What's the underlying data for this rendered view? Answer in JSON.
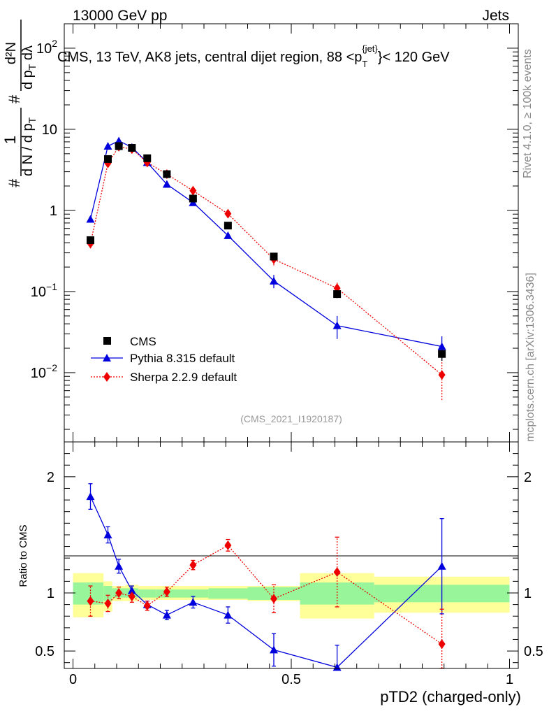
{
  "header": {
    "left": "13000 GeV pp",
    "right": "Jets"
  },
  "side_labels": {
    "rivet": "Rivet 4.1.0, ≥ 100k events",
    "mcplots": "mcplots.cern.ch [arXiv:1306.3436]"
  },
  "axis_labels": {
    "y_main_hash1": "#",
    "y_main_frac1_num": "1",
    "y_main_frac1_den": "d N / d p",
    "y_main_frac1_den_sub": "T",
    "y_main_hash2": "#",
    "y_main_frac2_num": "d²N",
    "y_main_frac2_den": "d p",
    "y_main_frac2_den_sub": "T",
    "y_main_frac2_den_tail": " dλ",
    "y_ratio": "Ratio to CMS",
    "x": "pTD2 (charged-only)"
  },
  "colors": {
    "cms": "#000000",
    "pythia": "#0000dd",
    "sherpa": "#ee0000",
    "band_inner": "#99f599",
    "band_outer": "#ffff99",
    "watermark": "#999999"
  },
  "chart_data": [
    {
      "panel": "main",
      "type": "line",
      "title": "CMS, 13 TeV, AK8 jets, central dijet region, 88 <p",
      "title_sup": "{jet}",
      "title_sub": "T",
      "title_tail": "}< 120 GeV",
      "watermark": "(CMS_2021_I1920187)",
      "xlabel": "pTD2 (charged-only)",
      "yscale": "log",
      "xlim": [
        -0.02,
        1.02
      ],
      "ylim": [
        0.0014,
        200
      ],
      "x_ticks": [
        0,
        0.5,
        1
      ],
      "y_tick_labels": [
        {
          "value": 100,
          "label": "10",
          "sup": "2"
        },
        {
          "value": 10,
          "label": "10",
          "sup": ""
        },
        {
          "value": 1,
          "label": "1",
          "sup": ""
        },
        {
          "value": 0.1,
          "label": "10",
          "sup": "−1"
        },
        {
          "value": 0.01,
          "label": "10",
          "sup": "−2"
        }
      ],
      "legend_position": "bottom-left",
      "series": [
        {
          "name": "CMS",
          "marker": "square",
          "x": [
            0.04,
            0.08,
            0.105,
            0.135,
            0.17,
            0.215,
            0.275,
            0.355,
            0.46,
            0.605,
            0.845
          ],
          "xerr": [
            0.02,
            0.02,
            0.015,
            0.015,
            0.02,
            0.025,
            0.035,
            0.045,
            0.06,
            0.085,
            0.155
          ],
          "values": [
            0.43,
            4.3,
            6.2,
            5.9,
            4.4,
            2.8,
            1.4,
            0.65,
            0.27,
            0.093,
            0.017
          ],
          "err": [
            0.03,
            0.2,
            0.25,
            0.25,
            0.2,
            0.15,
            0.08,
            0.05,
            0.025,
            0.01,
            0.003
          ]
        },
        {
          "name": "Pythia 8.315 default",
          "marker": "triangle",
          "line": "solid",
          "x": [
            0.04,
            0.08,
            0.105,
            0.135,
            0.17,
            0.215,
            0.275,
            0.355,
            0.46,
            0.605,
            0.845
          ],
          "values": [
            0.78,
            6.2,
            7.2,
            6.0,
            3.9,
            2.1,
            1.25,
            0.49,
            0.135,
            0.038,
            0.021
          ],
          "err": [
            0.04,
            0.2,
            0.25,
            0.2,
            0.15,
            0.1,
            0.07,
            0.04,
            0.025,
            0.012,
            0.007
          ]
        },
        {
          "name": "Sherpa 2.2.9 default",
          "marker": "diamond",
          "line": "dotted",
          "x": [
            0.04,
            0.08,
            0.105,
            0.135,
            0.17,
            0.215,
            0.275,
            0.355,
            0.46,
            0.605,
            0.845
          ],
          "values": [
            0.39,
            3.8,
            6.1,
            5.7,
            3.9,
            2.8,
            1.75,
            0.91,
            0.25,
            0.11,
            0.0094
          ],
          "err": [
            0.05,
            0.3,
            0.3,
            0.3,
            0.2,
            0.15,
            0.12,
            0.08,
            0.04,
            0.02,
            0.0048
          ]
        }
      ]
    },
    {
      "panel": "ratio",
      "type": "line",
      "ylabel": "Ratio to CMS",
      "xlabel": "pTD2 (charged-only)",
      "xlim": [
        -0.02,
        1.02
      ],
      "ylim": [
        0.35,
        2.3
      ],
      "x_ticks": [
        0,
        0.5,
        1
      ],
      "x_tick_labels": [
        "0",
        "0.5",
        "1"
      ],
      "y_ticks": [
        0.5,
        1,
        2
      ],
      "y_tick_labels": [
        "0.5",
        "1",
        "2"
      ],
      "bands": {
        "edges": [
          0,
          0.07,
          0.09,
          0.12,
          0.15,
          0.19,
          0.24,
          0.31,
          0.4,
          0.52,
          0.69,
          1.0
        ],
        "inner_lo": [
          0.9,
          0.93,
          0.96,
          0.96,
          0.96,
          0.96,
          0.96,
          0.95,
          0.94,
          0.9,
          0.92
        ],
        "inner_hi": [
          1.09,
          1.06,
          1.04,
          1.04,
          1.03,
          1.03,
          1.03,
          1.04,
          1.05,
          1.09,
          1.07
        ],
        "outer_lo": [
          0.79,
          0.84,
          0.93,
          0.93,
          0.94,
          0.94,
          0.94,
          0.94,
          0.93,
          0.78,
          0.83
        ],
        "outer_hi": [
          1.17,
          1.1,
          1.06,
          1.07,
          1.06,
          1.06,
          1.06,
          1.06,
          1.06,
          1.17,
          1.14
        ]
      },
      "series": [
        {
          "name": "Pythia 8.315 default",
          "x": [
            0.04,
            0.08,
            0.105,
            0.135,
            0.17,
            0.215,
            0.275,
            0.355,
            0.46,
            0.605,
            0.845
          ],
          "values": [
            1.83,
            1.5,
            1.23,
            1.02,
            0.9,
            0.81,
            0.92,
            0.81,
            0.51,
            0.36,
            1.23
          ],
          "err": [
            0.11,
            0.07,
            0.06,
            0.04,
            0.03,
            0.04,
            0.05,
            0.07,
            0.14,
            0.19,
            0.41
          ]
        },
        {
          "name": "Sherpa 2.2.9 default",
          "x": [
            0.04,
            0.08,
            0.105,
            0.135,
            0.17,
            0.215,
            0.275,
            0.355,
            0.46,
            0.605,
            0.845
          ],
          "values": [
            0.93,
            0.91,
            1.0,
            0.97,
            0.89,
            1.01,
            1.24,
            1.41,
            0.95,
            1.18,
            0.56
          ],
          "err": [
            0.13,
            0.07,
            0.05,
            0.05,
            0.04,
            0.04,
            0.04,
            0.05,
            0.12,
            0.3,
            0.3
          ]
        }
      ]
    }
  ]
}
